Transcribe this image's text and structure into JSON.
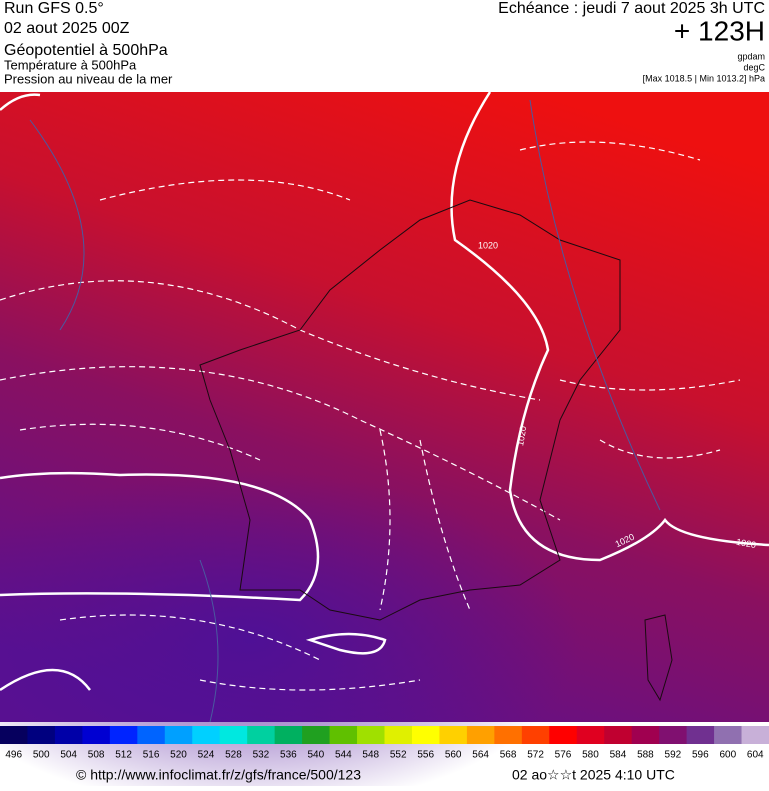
{
  "header": {
    "run": "Run GFS 0.5°",
    "date": "02 aout 2025 00Z",
    "field1": "Géopotentiel à 500hPa",
    "field2": "Température à 500hPa",
    "field3": "Pression au niveau de la mer",
    "echeance": "Echéance : jeudi 7 aout 2025 3h UTC",
    "offset": "+ 123H",
    "unit1": "gpdam",
    "unit2": "degC",
    "range": "[Max 1018.5 | Min 1013.2] hPa"
  },
  "map": {
    "isobar_labels": [
      "1020",
      "1020",
      "1020",
      "1020"
    ]
  },
  "colorbar": {
    "ticks": [
      496,
      500,
      504,
      508,
      512,
      516,
      520,
      524,
      528,
      532,
      536,
      540,
      544,
      548,
      552,
      556,
      560,
      564,
      568,
      572,
      576,
      580,
      584,
      588,
      592,
      596,
      600,
      604
    ],
    "colors": [
      "#06005e",
      "#00007f",
      "#0000a8",
      "#0000d2",
      "#0024ff",
      "#0064ff",
      "#00a0ff",
      "#00d0ff",
      "#00e8e0",
      "#00d0a0",
      "#00b060",
      "#20a020",
      "#60c000",
      "#a0e000",
      "#e0f000",
      "#ffff00",
      "#ffd000",
      "#ffa000",
      "#ff7000",
      "#ff4000",
      "#ff0000",
      "#e00020",
      "#c00030",
      "#a00050",
      "#801070",
      "#703090",
      "#9070b0",
      "#c8b0d8"
    ]
  },
  "footer": {
    "url": "© http://www.infoclimat.fr/z/gfs/france/500/123",
    "stamp": "02 ao☆☆t 2025  4:10 UTC"
  }
}
